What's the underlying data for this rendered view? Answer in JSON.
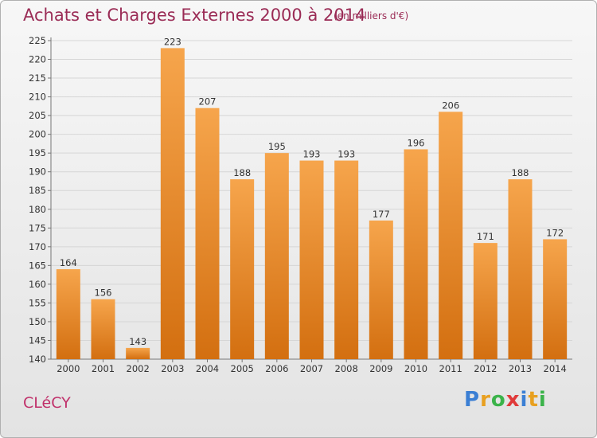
{
  "header": {
    "title": "Achats et Charges Externes 2000 à 2014",
    "unit": "(en milliers d'€)"
  },
  "footer": {
    "town": "CLéCY",
    "logo_letters": [
      "P",
      "r",
      "o",
      "x",
      "i",
      "t",
      "i"
    ],
    "logo_colors": [
      "#3b7fd4",
      "#e8a020",
      "#3bb34a",
      "#e03a3a",
      "#3b7fd4",
      "#e8a020",
      "#3bb34a"
    ]
  },
  "chart_data": {
    "type": "bar",
    "title": "Achats et Charges Externes 2000 à 2014",
    "xlabel": "",
    "ylabel": "",
    "categories": [
      "2000",
      "2001",
      "2002",
      "2003",
      "2004",
      "2005",
      "2006",
      "2007",
      "2008",
      "2009",
      "2010",
      "2011",
      "2012",
      "2013",
      "2014"
    ],
    "values": [
      164,
      156,
      143,
      223,
      207,
      188,
      195,
      193,
      193,
      177,
      196,
      206,
      171,
      188,
      172
    ],
    "ylim": [
      140,
      225
    ],
    "yticks": [
      140,
      145,
      150,
      155,
      160,
      165,
      170,
      175,
      180,
      185,
      190,
      195,
      200,
      205,
      210,
      215,
      220,
      225
    ],
    "grid": true,
    "bar_color": "#ee8a2e"
  }
}
